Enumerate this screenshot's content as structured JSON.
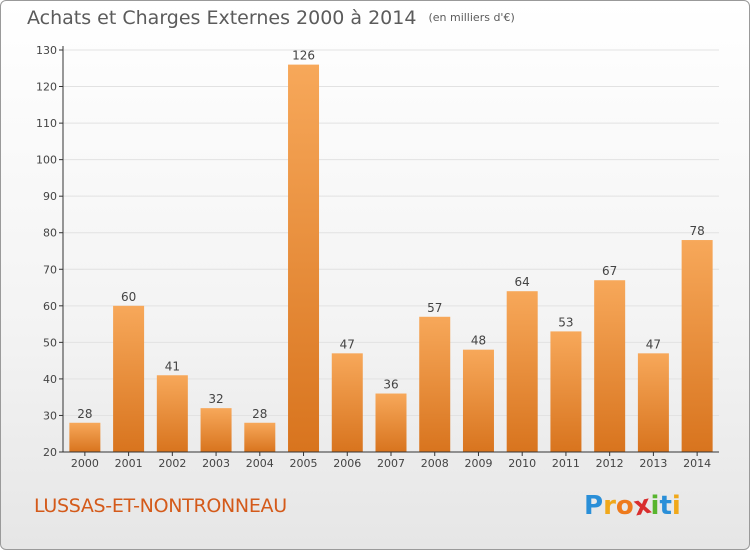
{
  "title": "Achats et Charges Externes 2000 à 2014",
  "subtitle": "(en milliers d'€)",
  "location": "LUSSAS-ET-NONTRONNEAU",
  "logo": {
    "text": "Proxiti",
    "letters": [
      {
        "char": "P",
        "color": "#2a8fd8"
      },
      {
        "char": "r",
        "color": "#f0a81a"
      },
      {
        "char": "o",
        "color": "#ee7a1c"
      },
      {
        "char": "x",
        "color": "#d92e2e"
      },
      {
        "char": "i",
        "color": "#58b52e"
      },
      {
        "char": "t",
        "color": "#2a8fd8"
      },
      {
        "char": "i",
        "color": "#f0a81a"
      }
    ]
  },
  "colors": {
    "bar_light": "#f7a85a",
    "bar_dark": "#d8741e",
    "axis": "#333333",
    "grid": "#e2e2e2",
    "title": "#5b5b5b",
    "location": "#d45a1a"
  },
  "chart_data": {
    "type": "bar",
    "categories": [
      "2000",
      "2001",
      "2002",
      "2003",
      "2004",
      "2005",
      "2006",
      "2007",
      "2008",
      "2009",
      "2010",
      "2011",
      "2012",
      "2013",
      "2014"
    ],
    "values": [
      28,
      60,
      41,
      32,
      28,
      126,
      47,
      36,
      57,
      48,
      64,
      53,
      67,
      47,
      78
    ],
    "ylim": [
      20,
      130
    ],
    "yticks": [
      20,
      30,
      40,
      50,
      60,
      70,
      80,
      90,
      100,
      110,
      120,
      130
    ],
    "grid": true,
    "legend": "none",
    "data_labels": true
  }
}
